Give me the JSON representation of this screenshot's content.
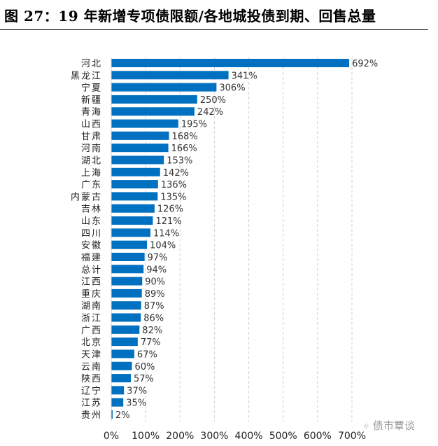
{
  "title": "图 27：19 年新增专项债限额/各地城投债到期、回售总量",
  "watermark": "债市覃谈",
  "chart_data": {
    "type": "bar",
    "orientation": "horizontal",
    "title": "图 27：19 年新增专项债限额/各地城投债到期、回售总量",
    "xlabel": "",
    "ylabel": "",
    "xlim": [
      0,
      700
    ],
    "xticks": [
      "0%",
      "100%",
      "200%",
      "300%",
      "400%",
      "500%",
      "600%",
      "700%"
    ],
    "grid": "vertical-dashed",
    "bar_color": "#0070C0",
    "categories": [
      "河北",
      "黑龙江",
      "宁夏",
      "新疆",
      "青海",
      "山西",
      "甘肃",
      "河南",
      "湖北",
      "上海",
      "广东",
      "内蒙古",
      "吉林",
      "山东",
      "四川",
      "安徽",
      "福建",
      "总计",
      "江西",
      "重庆",
      "湖南",
      "浙江",
      "广西",
      "北京",
      "天津",
      "云南",
      "陕西",
      "辽宁",
      "江苏",
      "贵州"
    ],
    "values": [
      692,
      341,
      306,
      250,
      242,
      195,
      168,
      166,
      153,
      142,
      136,
      135,
      126,
      121,
      114,
      104,
      97,
      94,
      90,
      89,
      87,
      86,
      82,
      77,
      67,
      60,
      57,
      37,
      35,
      2
    ],
    "labels": [
      "692%",
      "341%",
      "306%",
      "250%",
      "242%",
      "195%",
      "168%",
      "166%",
      "153%",
      "142%",
      "136%",
      "135%",
      "126%",
      "121%",
      "114%",
      "104%",
      "97%",
      "94%",
      "90%",
      "89%",
      "87%",
      "86%",
      "82%",
      "77%",
      "67%",
      "60%",
      "57%",
      "37%",
      "35%",
      "2%"
    ]
  }
}
